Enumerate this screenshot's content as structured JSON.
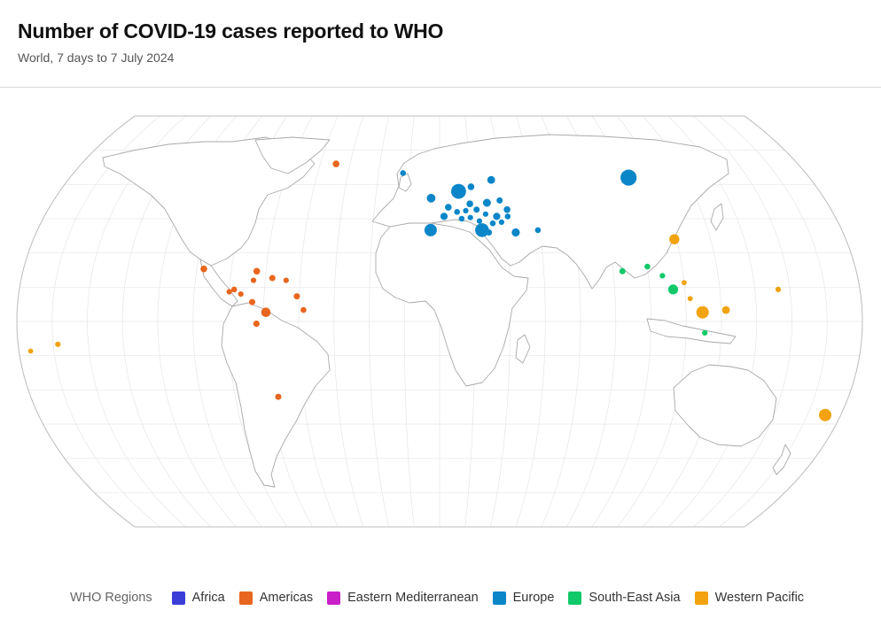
{
  "header": {
    "title": "Number of COVID-19 cases reported to WHO",
    "subtitle": "World, 7 days to 7 July 2024"
  },
  "legend": {
    "title": "WHO Regions",
    "items": [
      {
        "key": "africa",
        "label": "Africa",
        "color": "#3b3fd8"
      },
      {
        "key": "americas",
        "label": "Americas",
        "color": "#e8661f"
      },
      {
        "key": "emr",
        "label": "Eastern Mediterranean",
        "color": "#c81fc8"
      },
      {
        "key": "europe",
        "label": "Europe",
        "color": "#0a86c9"
      },
      {
        "key": "sear",
        "label": "South-East Asia",
        "color": "#12c96a"
      },
      {
        "key": "wpr",
        "label": "Western Pacific",
        "color": "#f2a30f"
      }
    ]
  },
  "map_data": {
    "projection": "robinson",
    "graticule": true,
    "marker_size": "proportional to reported cases",
    "markers": [
      {
        "region": "americas",
        "lon": -52,
        "lat": 69,
        "size": 1
      },
      {
        "region": "americas",
        "lon": -102,
        "lat": 23,
        "size": 1
      },
      {
        "region": "americas",
        "lon": -79,
        "lat": 22,
        "size": 1
      },
      {
        "region": "americas",
        "lon": -72,
        "lat": 19,
        "size": 0.8
      },
      {
        "region": "americas",
        "lon": -80,
        "lat": 18,
        "size": 0.6
      },
      {
        "region": "americas",
        "lon": -66,
        "lat": 18,
        "size": 0.6
      },
      {
        "region": "americas",
        "lon": -88,
        "lat": 14,
        "size": 0.7
      },
      {
        "region": "americas",
        "lon": -90,
        "lat": 13,
        "size": 0.6
      },
      {
        "region": "americas",
        "lon": -85,
        "lat": 12,
        "size": 0.6
      },
      {
        "region": "americas",
        "lon": -61,
        "lat": 11,
        "size": 0.8
      },
      {
        "region": "americas",
        "lon": -80,
        "lat": 8.5,
        "size": 0.8
      },
      {
        "region": "americas",
        "lon": -74,
        "lat": 4,
        "size": 2.2
      },
      {
        "region": "americas",
        "lon": -58,
        "lat": 5,
        "size": 0.7
      },
      {
        "region": "americas",
        "lon": -78,
        "lat": -1,
        "size": 0.9
      },
      {
        "region": "americas",
        "lon": -71,
        "lat": -33,
        "size": 0.8
      },
      {
        "region": "europe",
        "lon": -18,
        "lat": 65,
        "size": 0.7
      },
      {
        "region": "europe",
        "lon": 9,
        "lat": 57,
        "size": 6
      },
      {
        "region": "europe",
        "lon": 25,
        "lat": 62,
        "size": 1.4
      },
      {
        "region": "europe",
        "lon": 15,
        "lat": 59,
        "size": 1
      },
      {
        "region": "europe",
        "lon": -4,
        "lat": 54,
        "size": 1.8
      },
      {
        "region": "europe",
        "lon": 14,
        "lat": 51.5,
        "size": 1
      },
      {
        "region": "europe",
        "lon": 22,
        "lat": 52,
        "size": 1.5
      },
      {
        "region": "europe",
        "lon": 28,
        "lat": 53,
        "size": 0.8
      },
      {
        "region": "europe",
        "lon": 4,
        "lat": 50,
        "size": 1
      },
      {
        "region": "europe",
        "lon": 8,
        "lat": 48,
        "size": 0.7
      },
      {
        "region": "europe",
        "lon": 12,
        "lat": 48.5,
        "size": 0.6
      },
      {
        "region": "europe",
        "lon": 17,
        "lat": 49,
        "size": 0.8
      },
      {
        "region": "europe",
        "lon": 21,
        "lat": 47,
        "size": 0.6
      },
      {
        "region": "europe",
        "lon": 26,
        "lat": 46,
        "size": 1.2
      },
      {
        "region": "europe",
        "lon": 31,
        "lat": 49,
        "size": 1
      },
      {
        "region": "europe",
        "lon": 31,
        "lat": 46,
        "size": 0.7
      },
      {
        "region": "europe",
        "lon": 2,
        "lat": 46,
        "size": 1.2
      },
      {
        "region": "europe",
        "lon": 10,
        "lat": 45,
        "size": 0.7
      },
      {
        "region": "europe",
        "lon": 14,
        "lat": 45.5,
        "size": 0.6
      },
      {
        "region": "europe",
        "lon": 18,
        "lat": 44,
        "size": 0.6
      },
      {
        "region": "europe",
        "lon": 24,
        "lat": 43,
        "size": 0.7
      },
      {
        "region": "europe",
        "lon": 28,
        "lat": 43.5,
        "size": 0.6
      },
      {
        "region": "europe",
        "lon": -4,
        "lat": 40,
        "size": 4
      },
      {
        "region": "europe",
        "lon": 19,
        "lat": 40,
        "size": 5
      },
      {
        "region": "europe",
        "lon": 22,
        "lat": 39,
        "size": 0.8
      },
      {
        "region": "europe",
        "lon": 34,
        "lat": 39,
        "size": 1.6
      },
      {
        "region": "europe",
        "lon": 44,
        "lat": 40,
        "size": 0.7
      },
      {
        "region": "europe",
        "lon": 92,
        "lat": 63,
        "size": 7
      },
      {
        "region": "wpr",
        "lon": 104,
        "lat": 36,
        "size": 2.5
      },
      {
        "region": "wpr",
        "lon": 105,
        "lat": 17,
        "size": 0.5
      },
      {
        "region": "wpr",
        "lon": 107,
        "lat": 10,
        "size": 0.5
      },
      {
        "region": "wpr",
        "lon": 145,
        "lat": 14,
        "size": 0.6
      },
      {
        "region": "wpr",
        "lon": 112,
        "lat": 4,
        "size": 4
      },
      {
        "region": "wpr",
        "lon": 122,
        "lat": 5,
        "size": 1.4
      },
      {
        "region": "wpr",
        "lon": -175,
        "lat": -13,
        "size": 0.5
      },
      {
        "region": "wpr",
        "lon": -163,
        "lat": -10,
        "size": 0.6
      },
      {
        "region": "wpr",
        "lon": 173,
        "lat": -41,
        "size": 4
      },
      {
        "region": "sear",
        "lon": 79,
        "lat": 22,
        "size": 0.8
      },
      {
        "region": "sear",
        "lon": 90,
        "lat": 24,
        "size": 0.7
      },
      {
        "region": "sear",
        "lon": 96,
        "lat": 20,
        "size": 0.6
      },
      {
        "region": "sear",
        "lon": 100,
        "lat": 14,
        "size": 2.4
      },
      {
        "region": "sear",
        "lon": 113,
        "lat": -5,
        "size": 0.6
      }
    ]
  }
}
